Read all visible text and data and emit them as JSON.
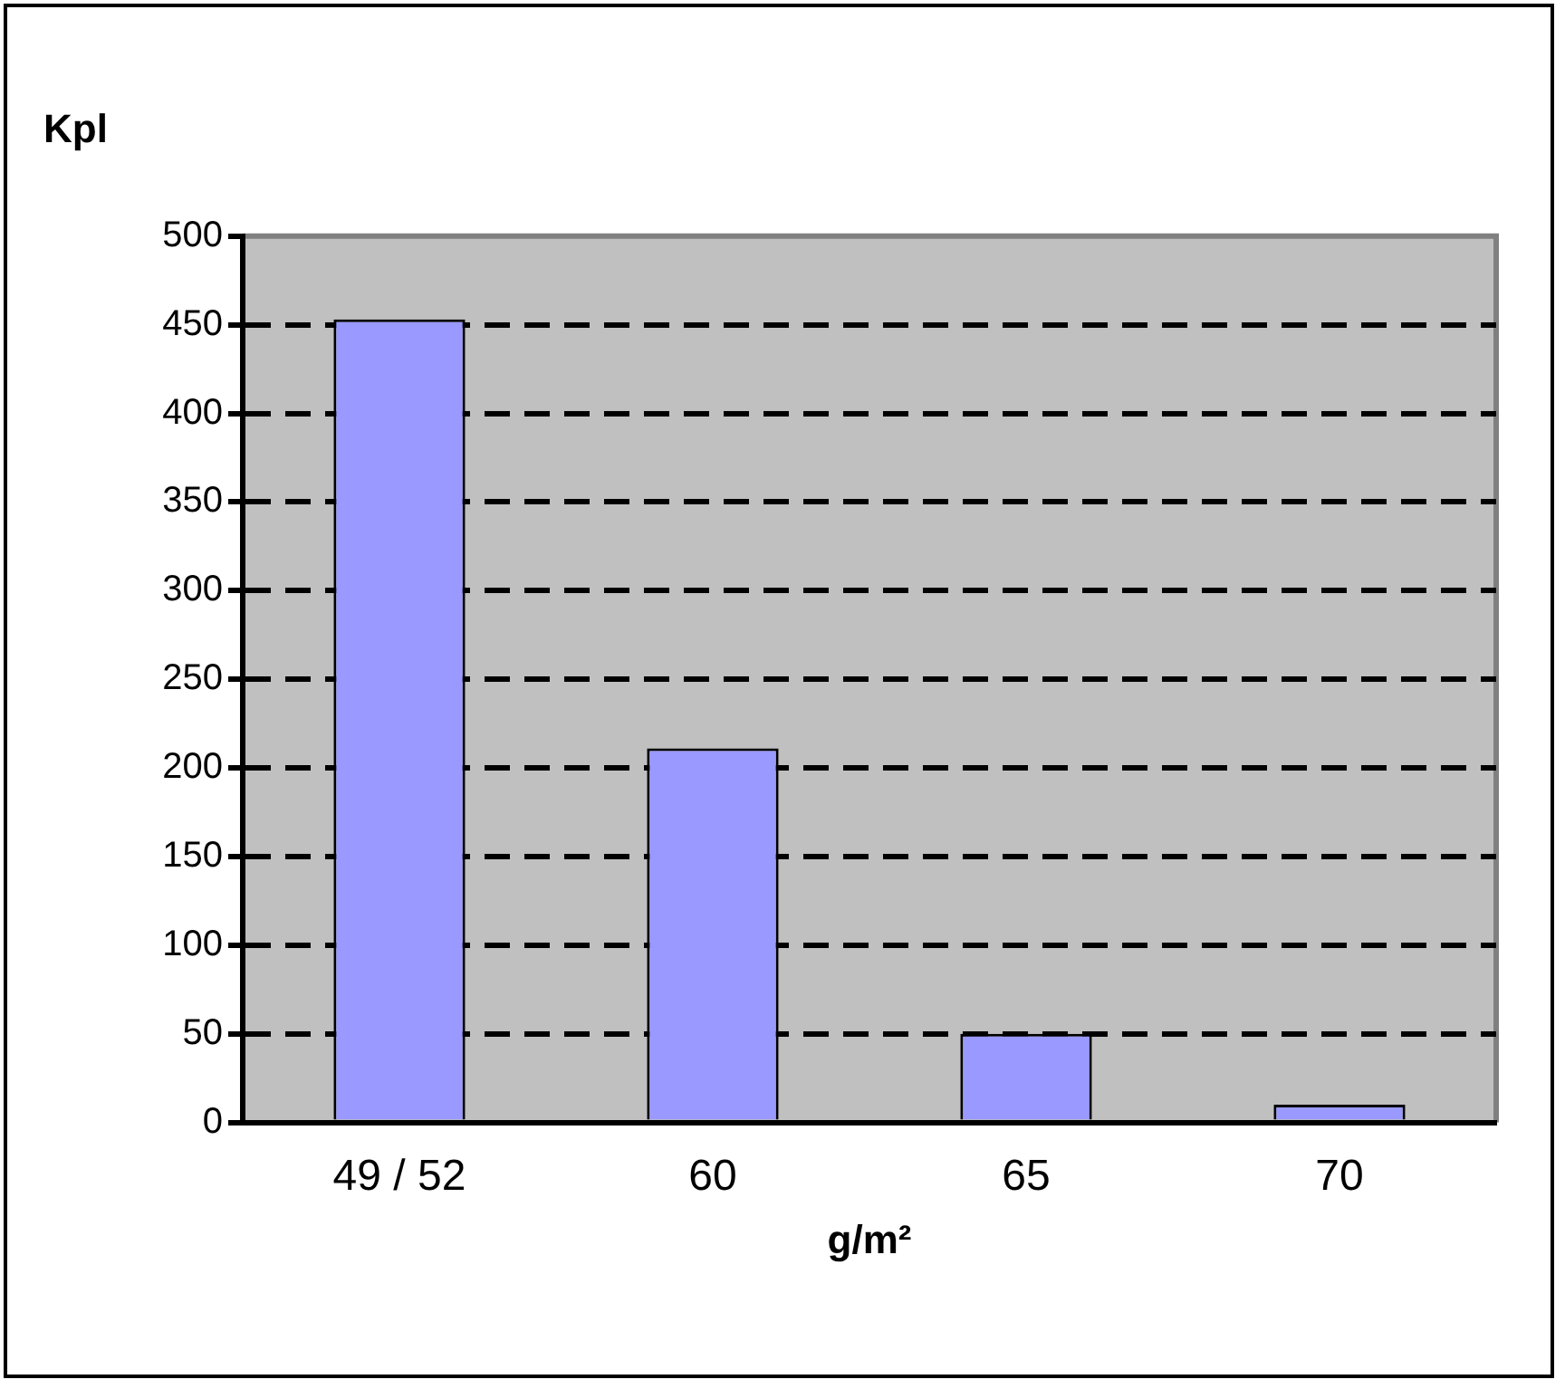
{
  "chart_data": {
    "type": "bar",
    "title": "Kpl",
    "xlabel": "g/m²",
    "categories": [
      "49 / 52",
      "60",
      "65",
      "70"
    ],
    "values": [
      453,
      211,
      50,
      10
    ],
    "color": "#9999ff",
    "ylim": [
      0,
      500
    ],
    "yticks": [
      0,
      50,
      100,
      150,
      200,
      250,
      300,
      350,
      400,
      450,
      500
    ],
    "grid": "y",
    "line_style": "dashed",
    "legend": false
  }
}
